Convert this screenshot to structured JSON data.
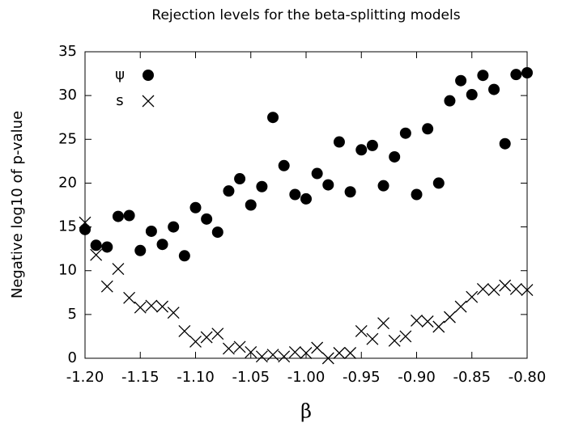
{
  "chart_data": {
    "type": "scatter",
    "title": "Rejection levels for the beta-splitting models",
    "xlabel": "β",
    "ylabel": "Negative log10 of p-value",
    "x": [
      -1.2,
      -1.19,
      -1.18,
      -1.17,
      -1.16,
      -1.15,
      -1.14,
      -1.13,
      -1.12,
      -1.11,
      -1.1,
      -1.09,
      -1.08,
      -1.07,
      -1.06,
      -1.05,
      -1.04,
      -1.03,
      -1.02,
      -1.01,
      -1.0,
      -0.99,
      -0.98,
      -0.97,
      -0.96,
      -0.95,
      -0.94,
      -0.93,
      -0.92,
      -0.91,
      -0.9,
      -0.89,
      -0.88,
      -0.87,
      -0.86,
      -0.85,
      -0.84,
      -0.83,
      -0.82,
      -0.81,
      -0.8
    ],
    "series": [
      {
        "name": "ψ",
        "color": "#000000",
        "marker": "circle",
        "values": [
          14.7,
          12.9,
          12.7,
          16.2,
          16.3,
          12.3,
          14.5,
          13.0,
          15.0,
          11.7,
          17.2,
          15.9,
          14.4,
          19.1,
          20.5,
          17.5,
          19.6,
          27.5,
          22.0,
          18.7,
          18.2,
          21.1,
          19.8,
          24.7,
          19.0,
          23.8,
          24.3,
          19.7,
          23.0,
          25.7,
          18.7,
          26.2,
          20.0,
          29.4,
          31.7,
          30.1,
          32.3,
          30.7,
          24.5,
          32.4,
          32.6
        ]
      },
      {
        "name": "s",
        "color": "#000000",
        "marker": "cross",
        "values": [
          15.5,
          11.8,
          8.2,
          10.2,
          6.9,
          5.8,
          6.0,
          5.9,
          5.2,
          3.1,
          1.9,
          2.4,
          2.8,
          1.1,
          1.3,
          0.7,
          0.2,
          0.4,
          0.2,
          0.7,
          0.6,
          1.2,
          0.0,
          0.6,
          0.6,
          3.1,
          2.2,
          4.0,
          2.0,
          2.5,
          4.3,
          4.2,
          3.6,
          4.7,
          5.9,
          7.0,
          7.9,
          7.8,
          8.3,
          7.9,
          7.8
        ]
      }
    ],
    "xlim": [
      -1.2,
      -0.8
    ],
    "xticks": [
      {
        "value": -1.2,
        "label": "-1.20"
      },
      {
        "value": -1.15,
        "label": "-1.15"
      },
      {
        "value": -1.1,
        "label": "-1.10"
      },
      {
        "value": -1.05,
        "label": "-1.05"
      },
      {
        "value": -1.0,
        "label": "-1.00"
      },
      {
        "value": -0.95,
        "label": "-0.95"
      },
      {
        "value": -0.9,
        "label": "-0.90"
      },
      {
        "value": -0.85,
        "label": "-0.85"
      },
      {
        "value": -0.8,
        "label": "-0.80"
      }
    ],
    "ylim": [
      0,
      35
    ],
    "yticks": [
      0,
      5,
      10,
      15,
      20,
      25,
      30,
      35
    ],
    "grid": false,
    "legend": "top-left"
  }
}
